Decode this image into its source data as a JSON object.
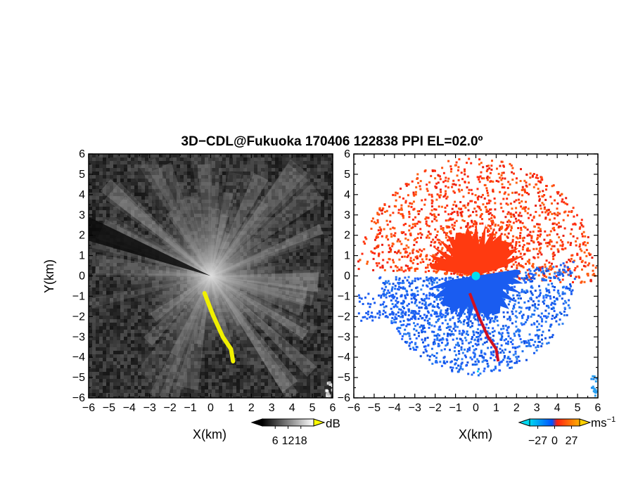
{
  "chart_data": {
    "type": "heatmap",
    "title": "3D−CDL@Fukuoka 170406 122838 PPI EL=02.0º",
    "panels": [
      {
        "name": "reflectivity",
        "xlabel": "X(km)",
        "ylabel": "Y(km)",
        "xlim": [
          -6,
          6
        ],
        "ylim": [
          -6,
          6
        ],
        "xticks": [
          "−6",
          "−5",
          "−4",
          "−3",
          "−2",
          "−1",
          "0",
          "1",
          "2",
          "3",
          "4",
          "5",
          "6"
        ],
        "yticks": [
          "6",
          "5",
          "4",
          "3",
          "2",
          "1",
          "0",
          "−1",
          "−2",
          "−3",
          "−4",
          "−5",
          "−6"
        ],
        "colorbar": {
          "unit": "dB",
          "ticks": [
            "6",
            "12",
            "18"
          ],
          "tick_values": [
            6,
            12,
            18
          ],
          "range": [
            0,
            24
          ],
          "colors": [
            "#000000",
            "#ffffff"
          ],
          "over_color": "#ffff00"
        },
        "features": {
          "background_level": 0.2,
          "dark_sector_direction": "west-northwest",
          "highlight_ribbon_color": "#f0f000",
          "ribbon_path": [
            [
              -0.3,
              -0.85
            ],
            [
              0.1,
              -1.9
            ],
            [
              0.6,
              -3.0
            ],
            [
              1.0,
              -3.6
            ],
            [
              1.1,
              -4.2
            ]
          ]
        }
      },
      {
        "name": "doppler-velocity",
        "xlabel": "X(km)",
        "xlim": [
          -6,
          6
        ],
        "ylim": [
          -6,
          6
        ],
        "xticks": [
          "−6",
          "−5",
          "−4",
          "−3",
          "−2",
          "−1",
          "0",
          "1",
          "2",
          "3",
          "4",
          "5",
          "6"
        ],
        "yticks": [
          "6",
          "5",
          "4",
          "3",
          "2",
          "1",
          "0",
          "−1",
          "−2",
          "−3",
          "−4",
          "−5",
          "−6"
        ],
        "colorbar": {
          "unit": "ms",
          "unit_exponent": "−1",
          "ticks": [
            "−27",
            "0",
            "27"
          ],
          "tick_values": [
            -27,
            0,
            27
          ],
          "range": [
            -40,
            40
          ],
          "colors": [
            "#00d8f0",
            "#0050ff",
            "#ff2010",
            "#ffb000"
          ]
        },
        "features": {
          "positive_color": "#ff3a10",
          "negative_color": "#1a5cf0",
          "center_marker_color": "#00e0f0"
        }
      }
    ]
  }
}
